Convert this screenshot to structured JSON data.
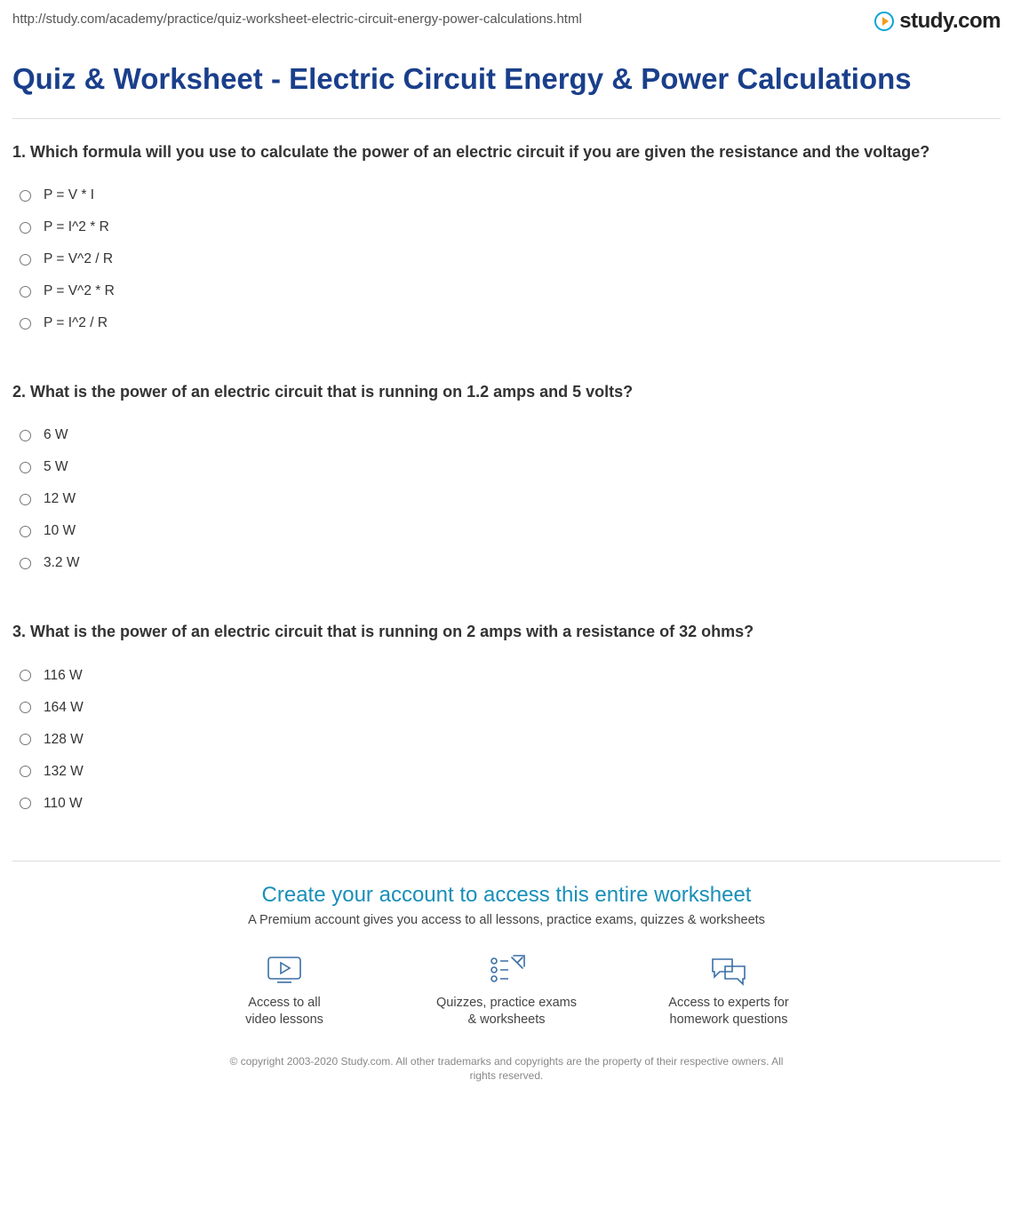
{
  "header": {
    "url": "http://study.com/academy/practice/quiz-worksheet-electric-circuit-energy-power-calculations.html",
    "logo_text": "study.com"
  },
  "title": "Quiz & Worksheet - Electric Circuit Energy & Power Calculations",
  "questions": [
    {
      "number": "1",
      "text": "Which formula will you use to calculate the power of an electric circuit if you are given the resistance and the voltage?",
      "options": [
        "P = V * I",
        "P = I^2 * R",
        "P = V^2 / R",
        "P = V^2 * R",
        "P = I^2 / R"
      ]
    },
    {
      "number": "2",
      "text": "What is the power of an electric circuit that is running on 1.2 amps and 5 volts?",
      "options": [
        "6 W",
        "5 W",
        "12 W",
        "10 W",
        "3.2 W"
      ]
    },
    {
      "number": "3",
      "text": "What is the power of an electric circuit that is running on 2 amps with a resistance of 32 ohms?",
      "options": [
        "116 W",
        "164 W",
        "128 W",
        "132 W",
        "110 W"
      ]
    }
  ],
  "cta": {
    "title": "Create your account to access this entire worksheet",
    "subtitle": "A Premium account gives you access to all lessons, practice exams, quizzes & worksheets",
    "benefits": [
      {
        "line1": "Access to all",
        "line2": "video lessons"
      },
      {
        "line1": "Quizzes, practice exams",
        "line2": "& worksheets"
      },
      {
        "line1": "Access to experts for",
        "line2": "homework questions"
      }
    ]
  },
  "copyright": "© copyright 2003-2020 Study.com. All other trademarks and copyrights are the property of their respective owners. All rights reserved.",
  "colors": {
    "title_color": "#1a3f8b",
    "cta_color": "#1a8fb8",
    "icon_color": "#3a6fa5",
    "text_color": "#333333",
    "muted_color": "#888888",
    "divider_color": "#dddddd"
  }
}
